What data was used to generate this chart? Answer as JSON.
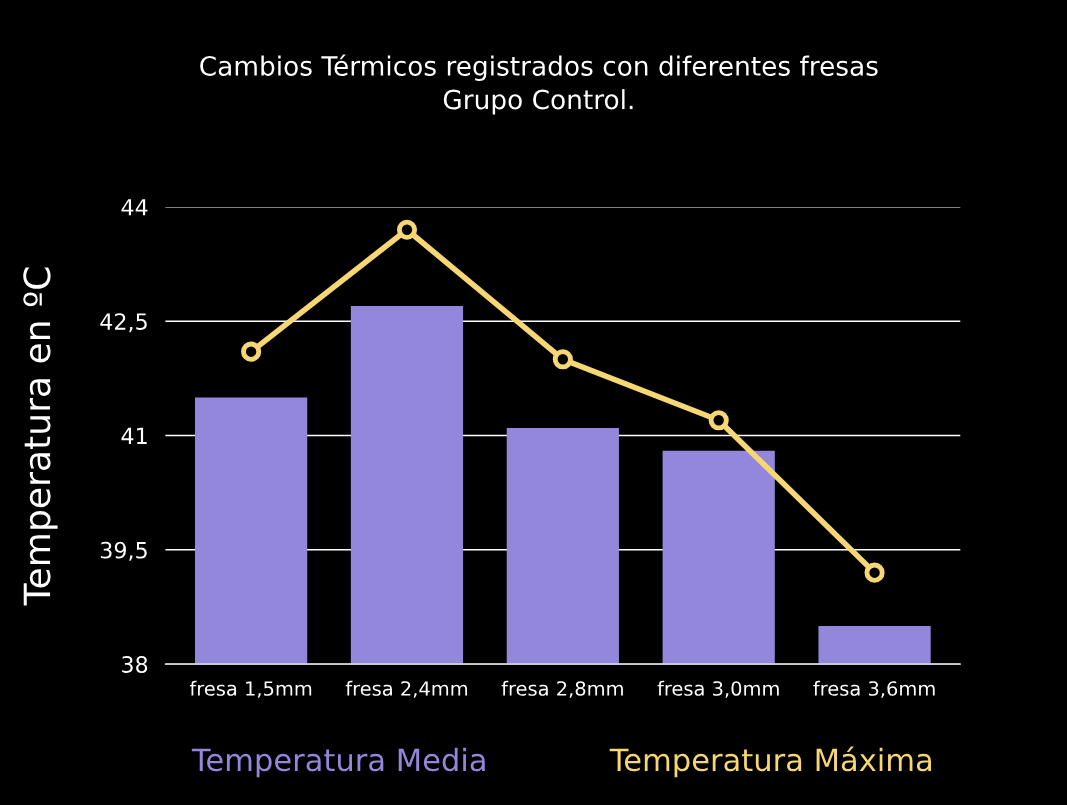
{
  "chart_data": {
    "type": "bar",
    "title": "Cambios Térmicos registrados con diferentes fresas\nGrupo Control.",
    "ylabel": "Temperatura en ºC",
    "categories": [
      "fresa 1,5mm",
      "fresa 2,4mm",
      "fresa 2,8mm",
      "fresa 3,0mm",
      "fresa 3,6mm"
    ],
    "series": [
      {
        "name": "Temperatura Media",
        "color": "#9287db",
        "values": [
          41.5,
          42.7,
          41.1,
          40.8,
          38.5
        ]
      },
      {
        "name": "Temperatura Máxima",
        "type": "line",
        "color": "#f7d774",
        "values": [
          42.1,
          43.7,
          42.0,
          41.2,
          39.2
        ]
      }
    ],
    "ylim": [
      38,
      44
    ],
    "yticks": [
      {
        "value": 38,
        "label": "38"
      },
      {
        "value": 39.5,
        "label": "39,5"
      },
      {
        "value": 41,
        "label": "41"
      },
      {
        "value": 42.5,
        "label": "42,5"
      },
      {
        "value": 44,
        "label": "44"
      }
    ],
    "grid": "y",
    "legend": "bottom",
    "marker": "circle",
    "line_style": "solid"
  }
}
